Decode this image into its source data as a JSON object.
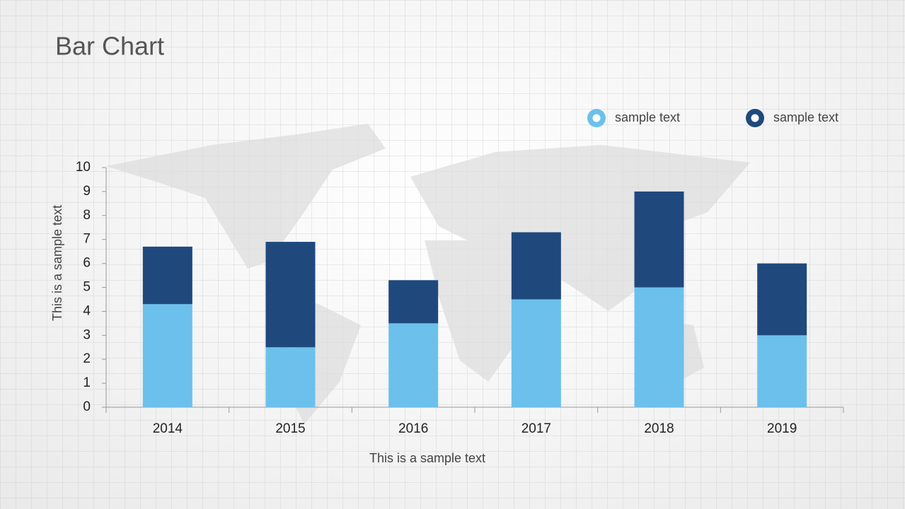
{
  "chart_data": {
    "type": "bar",
    "stacked": true,
    "title": "Bar Chart",
    "x_label": "This is a sample text",
    "y_label": "This is a sample text",
    "categories": [
      "2014",
      "2015",
      "2016",
      "2017",
      "2018",
      "2019"
    ],
    "series": [
      {
        "name": "sample text",
        "color": "#6bc1ec",
        "values": [
          4.3,
          2.5,
          3.5,
          4.5,
          5.0,
          3.0
        ]
      },
      {
        "name": "sample text",
        "color": "#1f497d",
        "values": [
          2.4,
          4.4,
          1.8,
          2.8,
          4.0,
          3.0
        ]
      }
    ],
    "ylim": [
      0,
      10
    ],
    "yticks": [
      0,
      1,
      2,
      3,
      4,
      5,
      6,
      7,
      8,
      9,
      10
    ],
    "grid": false
  }
}
